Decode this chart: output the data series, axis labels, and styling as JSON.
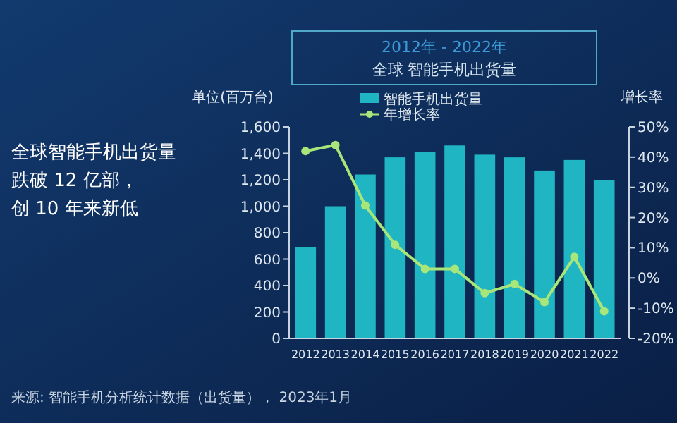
{
  "chart_data": {
    "type": "bar",
    "title": "2012年 - 2022年",
    "subtitle": "全球 智能手机出货量",
    "ylabel": "单位(百万台)",
    "y2label": "增长率",
    "categories": [
      "2012",
      "2013",
      "2014",
      "2015",
      "2016",
      "2017",
      "2018",
      "2019",
      "2020",
      "2021",
      "2022"
    ],
    "series": [
      {
        "name": "智能手机出货量",
        "color": "#1fb5c2",
        "values": [
          690,
          1000,
          1240,
          1370,
          1410,
          1460,
          1390,
          1370,
          1270,
          1350,
          1200
        ]
      },
      {
        "name": "年增长率",
        "type": "line",
        "axis": "y2",
        "color": "#a8e67a",
        "marker": "circle",
        "values": [
          42,
          44,
          24,
          11,
          3,
          3,
          -5,
          -2,
          -8,
          7,
          -11
        ]
      }
    ],
    "ylim": [
      0,
      1600
    ],
    "yticks": [
      0,
      {
        "value": 200,
        "label": "200"
      },
      {
        "value": 400,
        "label": "400"
      },
      {
        "value": 600,
        "label": "600"
      },
      {
        "value": 800,
        "label": "800"
      },
      {
        "value": 1000,
        "label": "1,000"
      },
      {
        "value": 1200,
        "label": "1,200"
      },
      {
        "value": 1400,
        "label": "1,400"
      },
      {
        "value": 1600,
        "label": "1,600"
      }
    ],
    "y2lim": [
      -20,
      50
    ],
    "y2ticks": [
      {
        "value": -20,
        "label": "-20%"
      },
      {
        "value": -10,
        "label": "-10%"
      },
      {
        "value": 0,
        "label": "0%"
      },
      {
        "value": 10,
        "label": "10%"
      },
      {
        "value": 20,
        "label": "20%"
      },
      {
        "value": 30,
        "label": "30%"
      },
      {
        "value": 40,
        "label": "40%"
      },
      {
        "value": 50,
        "label": "50%"
      }
    ],
    "legend": "top",
    "grid": false,
    "annotations": [
      "全球智能手机出货量跌破 12 亿部，创 10 年来新低",
      "来源: 智能手机分析统计数据（出货量）， 2023年1月"
    ]
  }
}
